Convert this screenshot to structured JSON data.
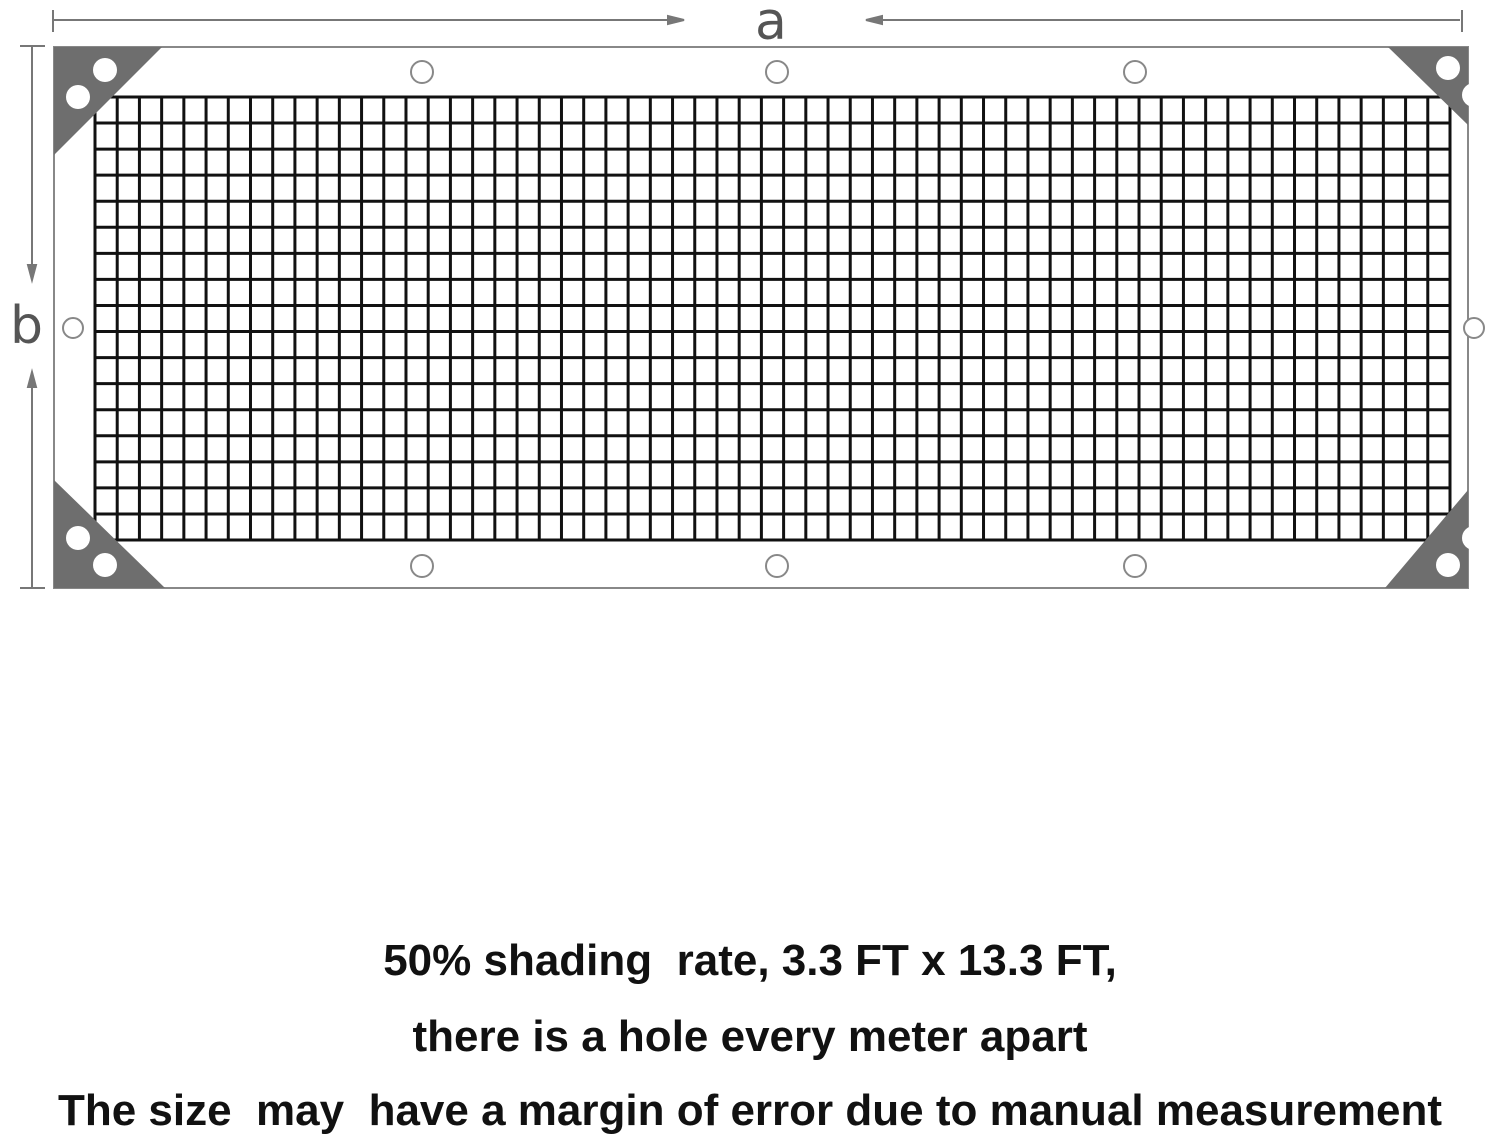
{
  "dimensions": {
    "width_label": "a",
    "height_label": "b"
  },
  "caption": {
    "line1": "50% shading  rate, 3.3 FT x 13.3 FT,",
    "line2": "there is a hole every meter apart",
    "line3": "The size  may  have a margin of error due to manual measurement"
  },
  "colors": {
    "frame": "#888888",
    "corner": "#6e6e6e",
    "mesh": "#111111"
  }
}
